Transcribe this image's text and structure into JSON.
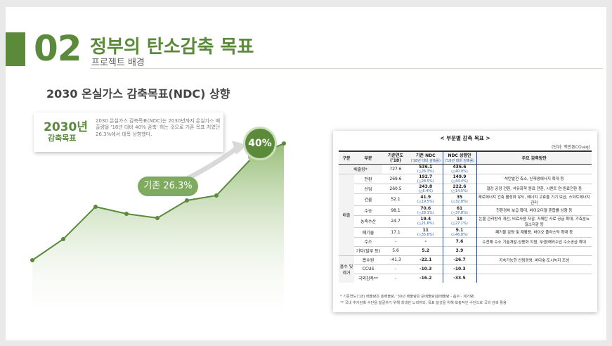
{
  "header": {
    "number": "02",
    "title": "정부의 탄소감축 목표",
    "subtitle": "프로젝트 배경"
  },
  "section_title": "2030 온실가스 감축목표(NDC) 상향",
  "callout": {
    "year": "2030년",
    "label": "감축목표",
    "desc": "2030 온실가스 감축목표(NDC)는 2030년까지 온실가스 배출량을 '18년 대비 40% 감축' 하는 것으로 기존 목표 치였던 26.3%에서 대폭 상향했다."
  },
  "badges": {
    "target": "40%",
    "existing": "기존 26.3%"
  },
  "colors": {
    "accent": "#5a8a3a",
    "ndc_border": "#2e4a8c",
    "pct": "#2b5fb0"
  },
  "table": {
    "title": "< 부문별 감축 목표 >",
    "unit": "(단위: 백만톤CO₂eq)",
    "headers": [
      "구분",
      "부문",
      "기준연도('18)",
      "기존 NDC",
      "NDC 상향안",
      "주요 감축방안"
    ],
    "header_notes": {
      "existing": "('18년 대비 감축률)",
      "ndc": "('18년 대비 감축률)"
    },
    "rows": [
      {
        "group": "배출량*",
        "sector": "",
        "base": "727.6",
        "old": "536.1",
        "old_pct": "(△26.3%)",
        "new": "436.6",
        "new_pct": "(△40.0%)",
        "measure": ""
      },
      {
        "group": "배출",
        "sector": "전환",
        "base": "269.6",
        "old": "192.7",
        "old_pct": "(△28.5%)",
        "new": "149.9",
        "new_pct": "(△44.4%)",
        "measure": "석탄발전 축소, 신재생에너지 확대 등"
      },
      {
        "group": "배출",
        "sector": "산업",
        "base": "260.5",
        "old": "243.8",
        "old_pct": "(△6.4%)",
        "new": "222.6",
        "new_pct": "(△14.5%)",
        "measure": "철강 공정 전환, 석유화학 원료 전환, 시멘트 연·원료전환 등"
      },
      {
        "group": "배출",
        "sector": "건물",
        "base": "52.1",
        "old": "41.9",
        "old_pct": "(△19.5%)",
        "new": "35",
        "new_pct": "(△32.8%)",
        "measure": "제로에너지 건축 활성화 유도, 에너지 고효율 기기 보급, 스마트에너지 관리"
      },
      {
        "group": "배출",
        "sector": "수송",
        "base": "98.1",
        "old": "70.6",
        "old_pct": "(△28.1%)",
        "new": "61",
        "new_pct": "(△37.8%)",
        "measure": "친환경차 보급 확대, 바이오디젤 혼합률 상향 등"
      },
      {
        "group": "배출",
        "sector": "농축수산",
        "base": "24.7",
        "old": "19.4",
        "old_pct": "(△21.6%)",
        "new": "18",
        "new_pct": "(△27.1%)",
        "measure": "논물 관리방식 개선, 비료사용 저감, 저메탄 사료 공급 확대, 가축분뇨 질소저감 등"
      },
      {
        "group": "배출",
        "sector": "폐기물",
        "base": "17.1",
        "old": "11",
        "old_pct": "(△35.6%)",
        "new": "9.1",
        "new_pct": "(△46.8%)",
        "measure": "폐기물 감량 및 재활용, 바이오 플라스틱 확대 등"
      },
      {
        "group": "배출",
        "sector": "수소",
        "base": "-",
        "old": "-",
        "old_pct": "",
        "new": "7.6",
        "new_pct": "",
        "measure": "수전해 수소 기술개발·상용화 지원, 부생/해외수입 수소공급 확대"
      },
      {
        "group": "배출",
        "sector": "기타(탈루 등)",
        "base": "5.6",
        "old": "5.2",
        "old_pct": "",
        "new": "3.9",
        "new_pct": "",
        "measure": ""
      },
      {
        "group": "흡수 및 제거",
        "sector": "흡수원",
        "base": "-41.3",
        "old": "-22.1",
        "old_pct": "",
        "new": "-26.7",
        "new_pct": "",
        "measure": "지속가능한 산림경영, 바다숲·도시녹지 조성"
      },
      {
        "group": "흡수 및 제거",
        "sector": "CCUS",
        "base": "-",
        "old": "-10.3",
        "old_pct": "",
        "new": "-10.3",
        "new_pct": "",
        "measure": ""
      },
      {
        "group": "흡수 및 제거",
        "sector": "국외감축**",
        "base": "-",
        "old": "-16.2",
        "old_pct": "",
        "new": "-33.5",
        "new_pct": "",
        "measure": ""
      }
    ],
    "footnotes": [
      "* 기준연도('18) 배출량은 총배출량, '30년 배출량은 순배출량(총배출량 - 흡수 · 제거량)",
      "** 국내 추가감축 수단을 발굴하기 위해 최대한 노력하되, 목표 달성을 위해 보충적인 수단으로 국외 감축 활용"
    ]
  }
}
